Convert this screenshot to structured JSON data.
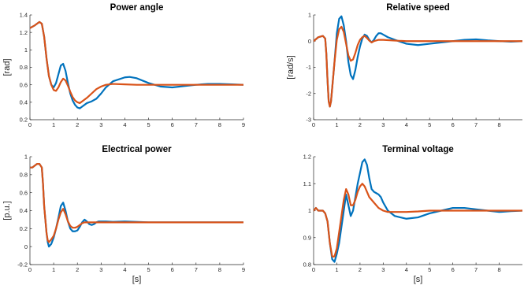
{
  "chart_data": [
    {
      "type": "line",
      "title": "Power angle",
      "xlabel": "",
      "ylabel": "[rad]",
      "xlim": [
        0,
        9
      ],
      "ylim": [
        0.2,
        1.4
      ],
      "xticks": [
        0,
        1,
        2,
        3,
        4,
        5,
        6,
        7,
        8,
        9
      ],
      "yticks": [
        0.2,
        0.4,
        0.6,
        0.8,
        1,
        1.2,
        1.4
      ],
      "xtick_labels": [
        "0",
        "1",
        "2",
        "3",
        "4",
        "5",
        "6",
        "7",
        "8",
        "9"
      ],
      "ytick_labels": [
        "0.2",
        "0.4",
        "0.6",
        "0.8",
        "1",
        "1.2",
        "1.4"
      ],
      "grid": false,
      "series": [
        {
          "color": "#0072BD",
          "x": [
            0,
            0.2,
            0.4,
            0.5,
            0.6,
            0.7,
            0.8,
            0.9,
            1.0,
            1.1,
            1.2,
            1.3,
            1.4,
            1.5,
            1.6,
            1.7,
            1.8,
            1.9,
            2.0,
            2.1,
            2.2,
            2.4,
            2.6,
            2.8,
            3.0,
            3.2,
            3.5,
            4.0,
            4.2,
            4.5,
            5.0,
            5.5,
            6.0,
            6.5,
            7.0,
            7.5,
            8.0,
            8.5,
            9.0
          ],
          "y": [
            1.25,
            1.28,
            1.32,
            1.3,
            1.15,
            0.9,
            0.7,
            0.6,
            0.57,
            0.62,
            0.72,
            0.82,
            0.84,
            0.76,
            0.62,
            0.5,
            0.42,
            0.37,
            0.34,
            0.33,
            0.35,
            0.39,
            0.41,
            0.44,
            0.5,
            0.57,
            0.64,
            0.685,
            0.69,
            0.675,
            0.62,
            0.58,
            0.57,
            0.585,
            0.6,
            0.61,
            0.61,
            0.605,
            0.6
          ]
        },
        {
          "color": "#D95319",
          "x": [
            0,
            0.2,
            0.4,
            0.5,
            0.6,
            0.7,
            0.8,
            0.9,
            1.0,
            1.1,
            1.2,
            1.3,
            1.4,
            1.5,
            1.6,
            1.7,
            1.8,
            1.9,
            2.0,
            2.1,
            2.2,
            2.4,
            2.6,
            2.8,
            3.0,
            3.2,
            3.5,
            4.0,
            4.5,
            5.0,
            6.0,
            7.0,
            8.0,
            9.0
          ],
          "y": [
            1.25,
            1.28,
            1.32,
            1.3,
            1.15,
            0.9,
            0.7,
            0.6,
            0.54,
            0.53,
            0.57,
            0.63,
            0.67,
            0.65,
            0.59,
            0.52,
            0.46,
            0.42,
            0.4,
            0.39,
            0.41,
            0.45,
            0.5,
            0.55,
            0.58,
            0.6,
            0.61,
            0.605,
            0.6,
            0.6,
            0.6,
            0.6,
            0.6,
            0.6
          ]
        }
      ]
    },
    {
      "type": "line",
      "title": "Relative speed",
      "xlabel": "",
      "ylabel": "[rad/s]",
      "xlim": [
        0,
        9
      ],
      "ylim": [
        -3,
        1
      ],
      "xticks": [
        0,
        1,
        2,
        3,
        4,
        5,
        6,
        7,
        8
      ],
      "yticks": [
        -3,
        -2,
        -1,
        0,
        1
      ],
      "xtick_labels": [
        "0",
        "1",
        "2",
        "3",
        "4",
        "5",
        "6",
        "7",
        "8"
      ],
      "ytick_labels": [
        "-3",
        "-2",
        "-1",
        "0",
        "1"
      ],
      "grid": false,
      "series": [
        {
          "color": "#0072BD",
          "x": [
            0,
            0.2,
            0.4,
            0.5,
            0.55,
            0.6,
            0.65,
            0.7,
            0.75,
            0.8,
            0.9,
            1.0,
            1.1,
            1.2,
            1.3,
            1.4,
            1.5,
            1.6,
            1.7,
            1.8,
            1.9,
            2.0,
            2.1,
            2.2,
            2.3,
            2.4,
            2.5,
            2.6,
            2.7,
            2.8,
            2.9,
            3.0,
            3.2,
            3.5,
            4.0,
            4.5,
            5.0,
            5.5,
            6.0,
            6.5,
            7.0,
            7.5,
            8.0,
            8.5,
            9.0
          ],
          "y": [
            0,
            0.15,
            0.2,
            0.1,
            -0.5,
            -1.5,
            -2.3,
            -2.5,
            -2.3,
            -1.8,
            -0.8,
            0.3,
            0.85,
            0.95,
            0.6,
            0,
            -0.8,
            -1.3,
            -1.45,
            -1.1,
            -0.6,
            -0.2,
            0.1,
            0.25,
            0.2,
            0.05,
            -0.05,
            0.05,
            0.2,
            0.3,
            0.3,
            0.25,
            0.15,
            0.05,
            -0.1,
            -0.15,
            -0.1,
            -0.05,
            0,
            0.05,
            0.07,
            0.03,
            0,
            -0.02,
            0
          ]
        },
        {
          "color": "#D95319",
          "x": [
            0,
            0.2,
            0.4,
            0.5,
            0.55,
            0.6,
            0.65,
            0.7,
            0.75,
            0.8,
            0.9,
            1.0,
            1.1,
            1.2,
            1.3,
            1.4,
            1.5,
            1.6,
            1.7,
            1.8,
            1.9,
            2.0,
            2.1,
            2.2,
            2.3,
            2.4,
            2.5,
            2.6,
            2.8,
            3.0,
            3.5,
            4.0,
            5.0,
            6.0,
            7.0,
            8.0,
            9.0
          ],
          "y": [
            0,
            0.15,
            0.2,
            0.1,
            -0.5,
            -1.5,
            -2.3,
            -2.5,
            -2.3,
            -1.8,
            -0.8,
            0.05,
            0.45,
            0.55,
            0.35,
            -0.1,
            -0.55,
            -0.75,
            -0.7,
            -0.45,
            -0.15,
            0.05,
            0.15,
            0.2,
            0.12,
            0.02,
            -0.05,
            0,
            0.05,
            0.05,
            0.02,
            0,
            0,
            0,
            0,
            0,
            0
          ]
        }
      ]
    },
    {
      "type": "line",
      "title": "Electrical power",
      "xlabel": "[s]",
      "ylabel": "[p.u.]",
      "xlim": [
        0,
        9
      ],
      "ylim": [
        -0.2,
        1
      ],
      "xticks": [
        0,
        1,
        2,
        3,
        4,
        5,
        6,
        7,
        8,
        9
      ],
      "yticks": [
        -0.2,
        0,
        0.2,
        0.4,
        0.6,
        0.8,
        1
      ],
      "xtick_labels": [
        "0",
        "1",
        "2",
        "3",
        "4",
        "5",
        "6",
        "7",
        "8",
        "9"
      ],
      "ytick_labels": [
        "-0.2",
        "0",
        "0.2",
        "0.4",
        "0.6",
        "0.8",
        "1"
      ],
      "grid": false,
      "series": [
        {
          "color": "#0072BD",
          "x": [
            0,
            0.1,
            0.2,
            0.3,
            0.4,
            0.5,
            0.55,
            0.6,
            0.7,
            0.75,
            0.8,
            0.9,
            1.0,
            1.1,
            1.2,
            1.3,
            1.4,
            1.5,
            1.6,
            1.7,
            1.8,
            1.9,
            2.0,
            2.1,
            2.2,
            2.3,
            2.4,
            2.5,
            2.6,
            2.7,
            2.8,
            2.9,
            3.0,
            3.2,
            3.5,
            4.0,
            5.0,
            6.0,
            7.0,
            8.0,
            9.0
          ],
          "y": [
            0.88,
            0.88,
            0.9,
            0.92,
            0.92,
            0.88,
            0.7,
            0.45,
            0.15,
            0.05,
            0.0,
            0.03,
            0.1,
            0.2,
            0.32,
            0.45,
            0.49,
            0.4,
            0.28,
            0.2,
            0.17,
            0.17,
            0.18,
            0.22,
            0.27,
            0.3,
            0.28,
            0.25,
            0.24,
            0.25,
            0.27,
            0.28,
            0.28,
            0.28,
            0.275,
            0.28,
            0.27,
            0.27,
            0.27,
            0.27,
            0.27
          ]
        },
        {
          "color": "#D95319",
          "x": [
            0,
            0.1,
            0.2,
            0.3,
            0.4,
            0.5,
            0.55,
            0.6,
            0.7,
            0.75,
            0.8,
            0.9,
            1.0,
            1.1,
            1.2,
            1.3,
            1.4,
            1.5,
            1.6,
            1.7,
            1.8,
            1.9,
            2.0,
            2.1,
            2.2,
            2.3,
            2.4,
            2.6,
            2.8,
            3.0,
            3.5,
            4.0,
            5.0,
            6.0,
            7.0,
            8.0,
            9.0
          ],
          "y": [
            0.88,
            0.88,
            0.9,
            0.92,
            0.92,
            0.88,
            0.7,
            0.45,
            0.15,
            0.07,
            0.05,
            0.08,
            0.12,
            0.2,
            0.3,
            0.38,
            0.42,
            0.36,
            0.28,
            0.23,
            0.21,
            0.21,
            0.22,
            0.24,
            0.26,
            0.27,
            0.27,
            0.27,
            0.27,
            0.27,
            0.27,
            0.27,
            0.27,
            0.27,
            0.27,
            0.27,
            0.27
          ]
        }
      ]
    },
    {
      "type": "line",
      "title": "Terminal voltage",
      "xlabel": "[s]",
      "ylabel": "",
      "xlim": [
        0,
        9
      ],
      "ylim": [
        0.8,
        1.2
      ],
      "xticks": [
        0,
        1,
        2,
        3,
        4,
        5,
        6,
        7,
        8
      ],
      "yticks": [
        0.8,
        0.9,
        1,
        1.1,
        1.2
      ],
      "xtick_labels": [
        "0",
        "1",
        "2",
        "3",
        "4",
        "5",
        "6",
        "7",
        "8"
      ],
      "ytick_labels": [
        "0.8",
        "0.9",
        "1",
        "1.1",
        "1.2"
      ],
      "grid": false,
      "series": [
        {
          "color": "#0072BD",
          "x": [
            0,
            0.1,
            0.2,
            0.4,
            0.5,
            0.6,
            0.7,
            0.8,
            0.9,
            1.0,
            1.1,
            1.2,
            1.3,
            1.4,
            1.5,
            1.6,
            1.7,
            1.8,
            1.9,
            2.0,
            2.1,
            2.2,
            2.3,
            2.4,
            2.5,
            2.6,
            2.7,
            2.8,
            2.9,
            3.0,
            3.2,
            3.5,
            4.0,
            4.5,
            5.0,
            5.5,
            6.0,
            6.5,
            7.0,
            7.5,
            8.0,
            8.5,
            9.0
          ],
          "y": [
            1.0,
            1.01,
            1.0,
            1.0,
            0.99,
            0.96,
            0.88,
            0.82,
            0.81,
            0.84,
            0.88,
            0.94,
            1.0,
            1.06,
            1.02,
            0.98,
            1.0,
            1.05,
            1.1,
            1.14,
            1.18,
            1.19,
            1.17,
            1.12,
            1.08,
            1.07,
            1.065,
            1.06,
            1.05,
            1.03,
            1.0,
            0.98,
            0.97,
            0.975,
            0.99,
            1.0,
            1.01,
            1.01,
            1.005,
            1.0,
            0.995,
            0.998,
            1.0
          ]
        },
        {
          "color": "#D95319",
          "x": [
            0,
            0.1,
            0.2,
            0.4,
            0.5,
            0.6,
            0.7,
            0.8,
            0.9,
            1.0,
            1.1,
            1.2,
            1.3,
            1.4,
            1.5,
            1.6,
            1.7,
            1.8,
            1.9,
            2.0,
            2.1,
            2.2,
            2.3,
            2.4,
            2.6,
            2.8,
            3.0,
            3.2,
            3.5,
            4.0,
            4.5,
            5.0,
            6.0,
            7.0,
            8.0,
            9.0
          ],
          "y": [
            1.0,
            1.01,
            1.0,
            1.0,
            0.99,
            0.96,
            0.88,
            0.83,
            0.83,
            0.86,
            0.92,
            0.98,
            1.04,
            1.08,
            1.06,
            1.02,
            1.02,
            1.04,
            1.07,
            1.09,
            1.1,
            1.09,
            1.07,
            1.05,
            1.03,
            1.01,
            1.0,
            0.995,
            0.995,
            0.995,
            0.997,
            1.0,
            1.0,
            1.0,
            1.0,
            1.0
          ]
        }
      ]
    }
  ]
}
